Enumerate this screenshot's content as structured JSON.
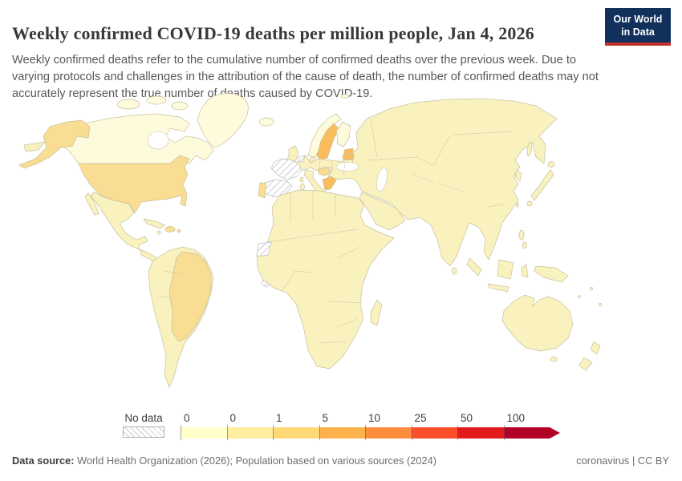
{
  "header": {
    "title": "Weekly confirmed COVID-19 deaths per million people, Jan 4, 2026",
    "subtitle": "Weekly confirmed deaths refer to the cumulative number of confirmed deaths over the previous week. Due to varying protocols and challenges in the attribution of the cause of death, the number of confirmed deaths may not accurately represent the true number of deaths caused by COVID-19."
  },
  "logo": {
    "line1": "Our World",
    "line2": "in Data",
    "navy": "#12305c",
    "red": "#c4302b"
  },
  "legend": {
    "no_data_label": "No data",
    "tick_labels": [
      "0",
      "0",
      "1",
      "5",
      "10",
      "25",
      "50",
      "100"
    ],
    "colors": [
      "#FFFFCC",
      "#FFEDA0",
      "#FED976",
      "#FEB24C",
      "#FD8D3C",
      "#FC4E2A",
      "#E31A1C",
      "#B10026"
    ]
  },
  "footer": {
    "source_label": "Data source:",
    "source_text": " World Health Organization (2026); Population based on various sources (2024)",
    "right_text": "coronavirus | CC BY"
  },
  "map": {
    "ocean": "#ffffff",
    "border_color": "#c6c09e",
    "palette": {
      "bin0": "#FEFBDC",
      "bin1": "#F9F2BE",
      "bin2": "#F8DD92",
      "bin3": "#FBBD5C",
      "bin4": "#F0A14A"
    },
    "regions": {
      "greenland": "bin0",
      "arctic-islands": "bin0",
      "canada": "bin0",
      "alaska": "bin2",
      "usa": "bin2",
      "mexico": "bin1",
      "baja": "bin1",
      "central-america": "bin1",
      "panama": "bin4",
      "cuba": "bin1",
      "hispaniola": "bin2",
      "jamaica": "bin1",
      "puerto-rico": "bin2",
      "south-america": "bin1",
      "brazil": "bin2",
      "iceland": "bin0",
      "uk": "bin1",
      "ireland": "bin1",
      "norway": "bin0",
      "sweden": "bin3",
      "finland": "bin0",
      "denmark": "bin1",
      "estonia": "bin3",
      "latvia": "bin3",
      "lithuania": "bin1",
      "netherlands": "no_data",
      "france": "no_data",
      "spain": "no_data",
      "portugal": "bin2",
      "central-europe": "bin2",
      "italy": "bin1",
      "sicily": "bin1",
      "sardinia": "bin1",
      "corsica": "bin1",
      "greece": "bin3",
      "crete": "bin3",
      "eurasia": "bin1",
      "chukotka": "bin1",
      "svalbard": "bin0",
      "arabia": "bin1",
      "sakhalin": "bin1",
      "japan": "bin1",
      "hokkaido": "bin1",
      "kyushu": "bin1",
      "korea": "bin1",
      "taiwan": "bin1",
      "philippines": "bin1",
      "sri-lanka": "bin1",
      "sumatra": "bin1",
      "java": "bin1",
      "borneo": "bin1",
      "sulawesi": "bin1",
      "new-guinea": "bin1",
      "australia": "bin1",
      "tasmania": "bin1",
      "new-zealand": "bin1",
      "pacific-islands": "bin1",
      "africa": "bin1",
      "western-sahara": "no_data",
      "liberia": "no_data",
      "madagascar": "bin1"
    }
  },
  "chart_data": {
    "type": "choropleth_map",
    "title": "Weekly confirmed COVID-19 deaths per million people",
    "date": "Jan 4, 2026",
    "unit": "weekly confirmed deaths per million people",
    "legend_bin_edges": [
      0,
      0,
      1,
      5,
      10,
      25,
      50,
      100
    ],
    "legend_colors": [
      "#FFFFCC",
      "#FFEDA0",
      "#FED976",
      "#FEB24C",
      "#FD8D3C",
      "#FC4E2A",
      "#E31A1C",
      "#B10026"
    ],
    "no_data_regions": [
      "France",
      "Spain",
      "Netherlands",
      "Western Sahara",
      "Liberia"
    ],
    "regions_by_apparent_bin": {
      "1-5": [
        "United States",
        "Brazil",
        "Portugal",
        "Slovakia/Hungary area",
        "Dominican Republic"
      ],
      "5-10": [
        "Sweden",
        "Estonia",
        "Latvia",
        "Greece",
        "North Macedonia"
      ],
      "10-25": [
        "Panama"
      ],
      "0-1_default": [
        "Canada",
        "Greenland",
        "Mexico",
        "most of Africa",
        "most of Asia",
        "Australia",
        "rest of world"
      ]
    }
  }
}
